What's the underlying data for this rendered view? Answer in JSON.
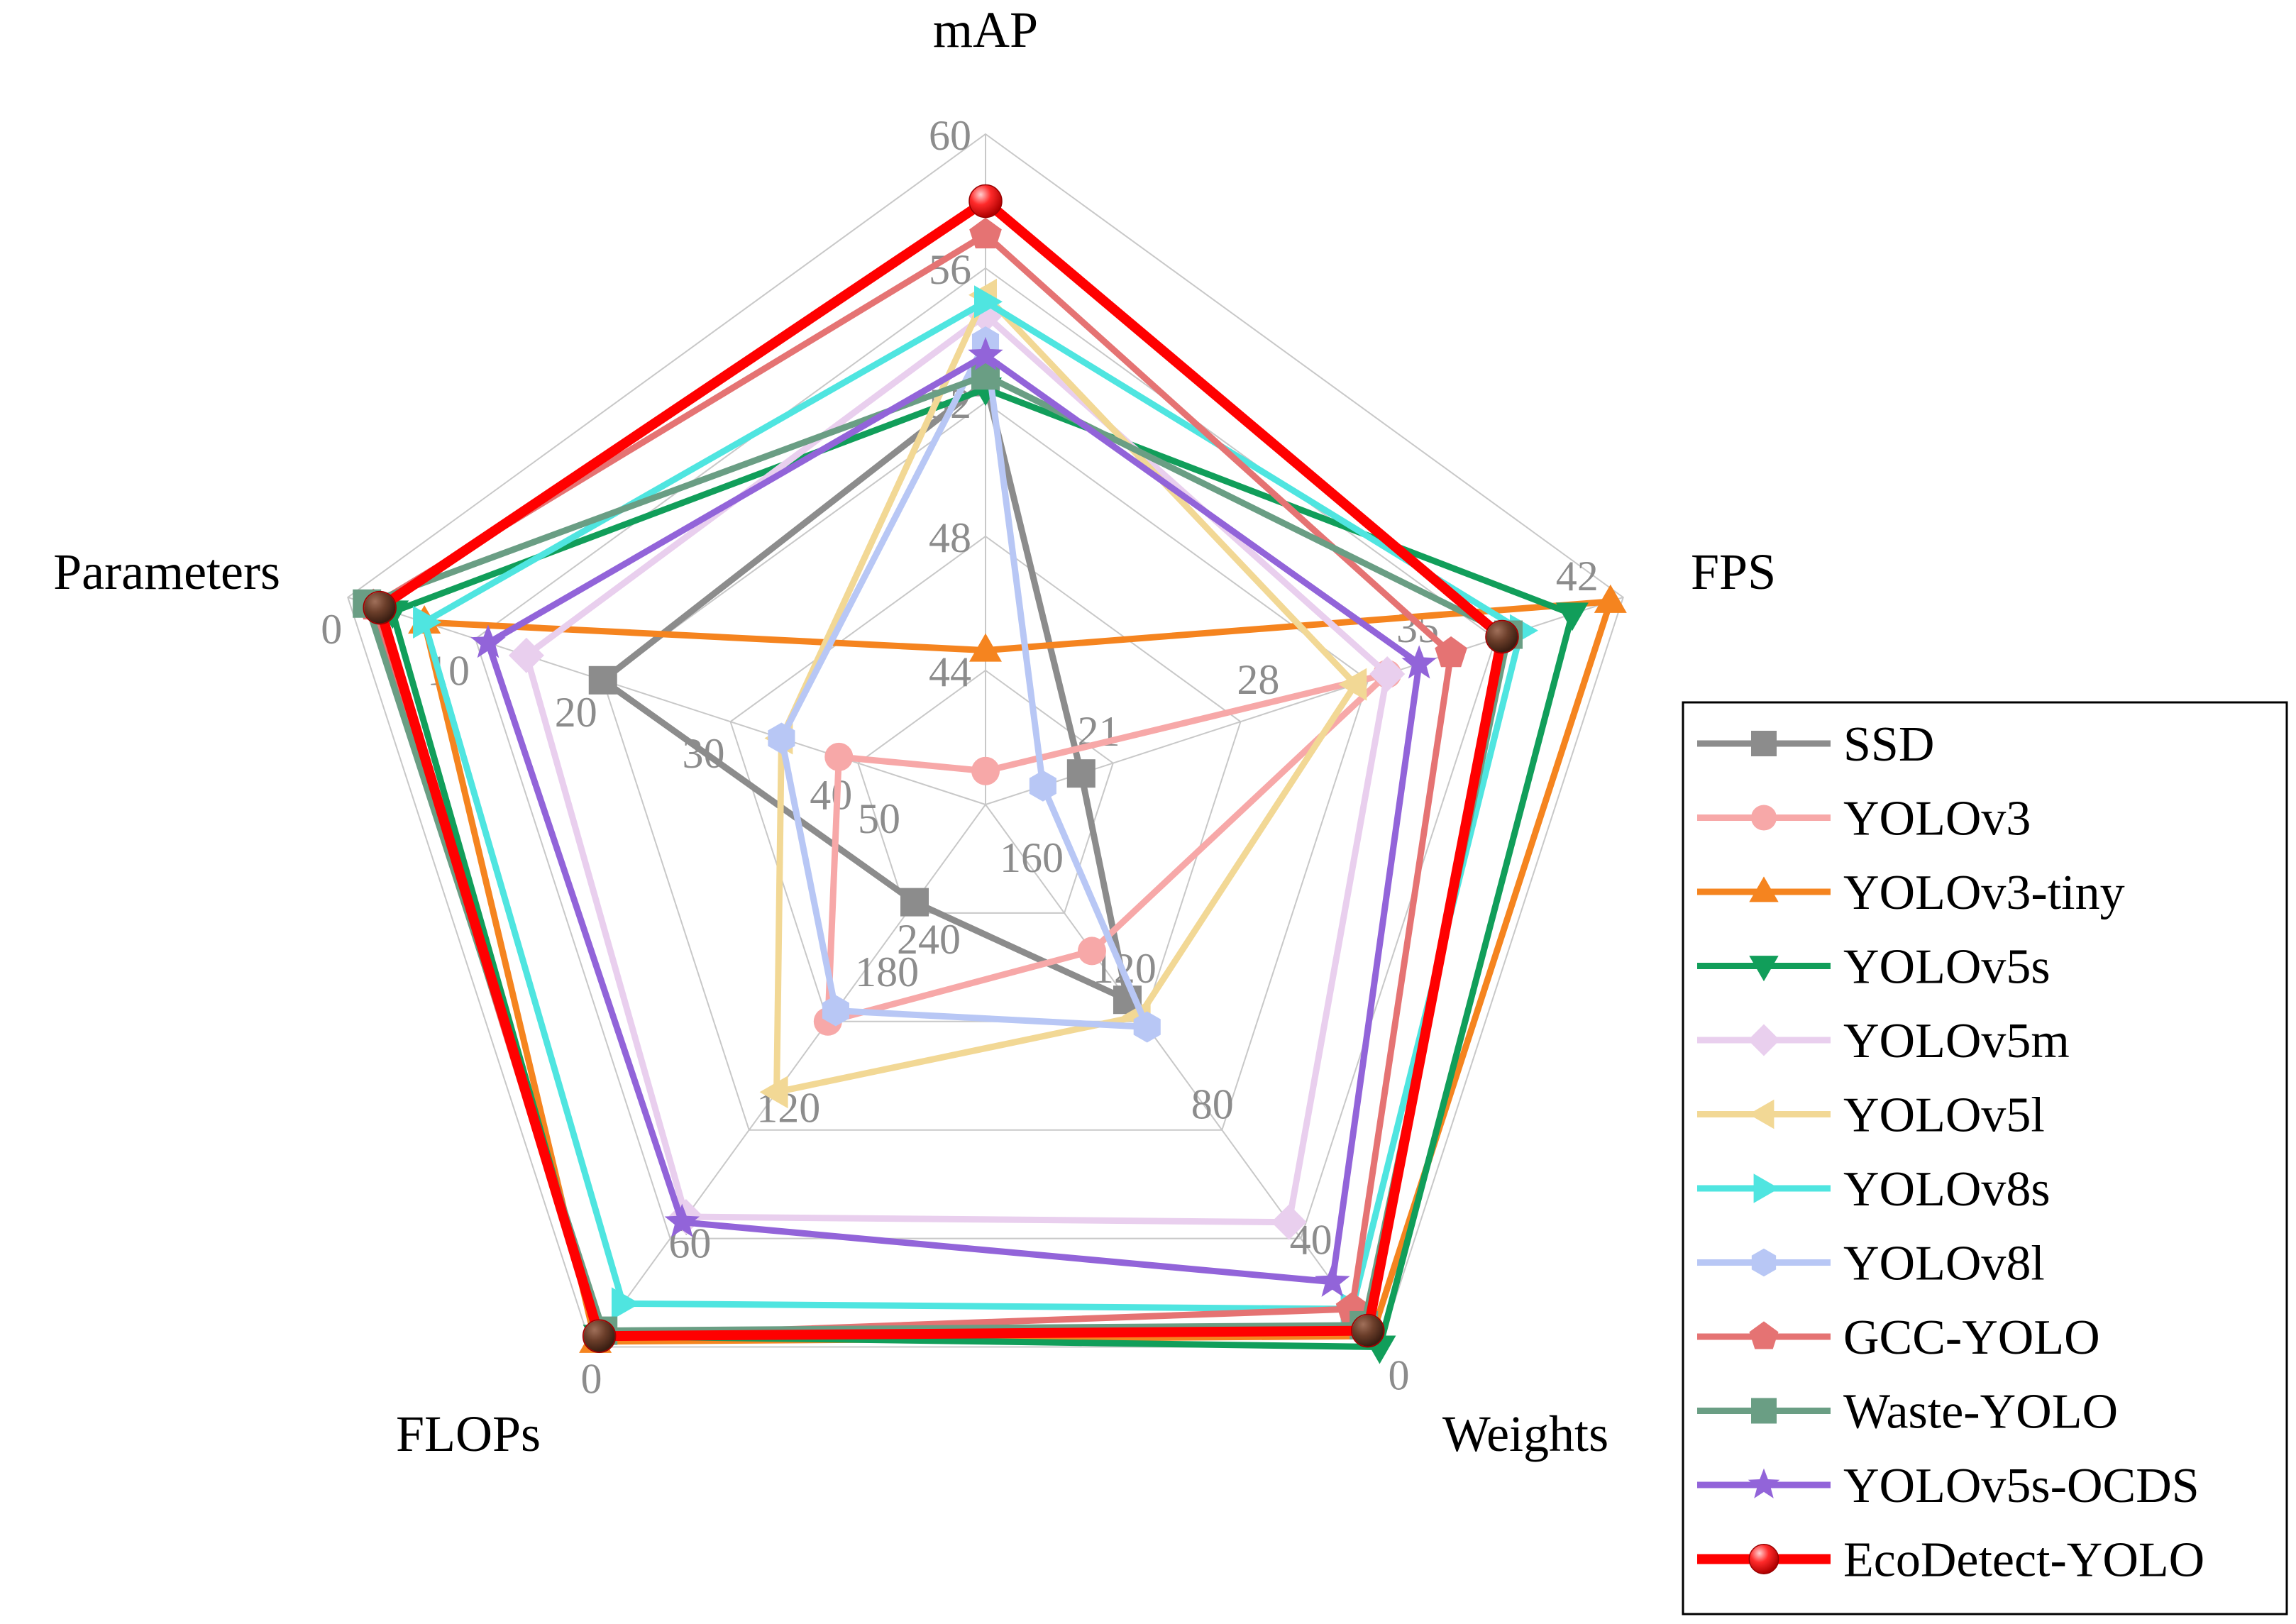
{
  "chart_data": {
    "type": "radar",
    "title": "",
    "axes": [
      {
        "name": "mAP",
        "ticks": [
          "44",
          "48",
          "52",
          "56",
          "60"
        ]
      },
      {
        "name": "FPS",
        "ticks": [
          "21",
          "28",
          "35",
          "42"
        ]
      },
      {
        "name": "Weights",
        "ticks": [
          "0",
          "40",
          "80",
          "120",
          "160"
        ]
      },
      {
        "name": "FLOPs",
        "ticks": [
          "0",
          "60",
          "120",
          "180",
          "240"
        ]
      },
      {
        "name": "Parameters",
        "ticks": [
          "0",
          "10",
          "20",
          "30",
          "40",
          "50"
        ]
      }
    ],
    "series": [
      {
        "name": "SSD",
        "color": "#8c8c8c",
        "marker": "square",
        "fractions": [
          0.63,
          0.15,
          0.36,
          0.18,
          0.6
        ]
      },
      {
        "name": "YOLOv3",
        "color": "#f7a8a8",
        "marker": "circle",
        "fractions": [
          0.05,
          0.63,
          0.27,
          0.4,
          0.23
        ]
      },
      {
        "name": "YOLOv3-tiny",
        "color": "#f5841f",
        "marker": "triangle-up",
        "fractions": [
          0.23,
          0.98,
          0.98,
          0.99,
          0.88
        ]
      },
      {
        "name": "YOLOv5s",
        "color": "#119e5a",
        "marker": "triangle-down",
        "fractions": [
          0.62,
          0.92,
          1.0,
          0.98,
          0.93
        ]
      },
      {
        "name": "YOLOv5m",
        "color": "#e9cfee",
        "marker": "diamond",
        "fractions": [
          0.73,
          0.63,
          0.77,
          0.76,
          0.72
        ]
      },
      {
        "name": "YOLOv5l",
        "color": "#f2d895",
        "marker": "triangle-left",
        "fractions": [
          0.76,
          0.58,
          0.39,
          0.53,
          0.32
        ]
      },
      {
        "name": "YOLOv8s",
        "color": "#4fe5e0",
        "marker": "triangle-right",
        "fractions": [
          0.75,
          0.84,
          0.93,
          0.92,
          0.88
        ]
      },
      {
        "name": "YOLOv8l",
        "color": "#b8c7f5",
        "marker": "hexagon",
        "fractions": [
          0.69,
          0.09,
          0.41,
          0.38,
          0.32
        ]
      },
      {
        "name": "GCC-YOLO",
        "color": "#e57373",
        "marker": "pentagon",
        "fractions": [
          0.85,
          0.73,
          0.93,
          0.98,
          0.96
        ]
      },
      {
        "name": "Waste-YOLO",
        "color": "#6a9e84",
        "marker": "square",
        "fractions": [
          0.64,
          0.82,
          0.96,
          0.97,
          0.97
        ]
      },
      {
        "name": "YOLOv5s-OCDS",
        "color": "#9264d9",
        "marker": "star",
        "fractions": [
          0.67,
          0.68,
          0.88,
          0.77,
          0.78
        ]
      },
      {
        "name": "EcoDetect-YOLO",
        "color": "#ff0000",
        "marker": "ball",
        "fractions": [
          0.9,
          0.81,
          0.97,
          0.98,
          0.95
        ]
      }
    ]
  }
}
